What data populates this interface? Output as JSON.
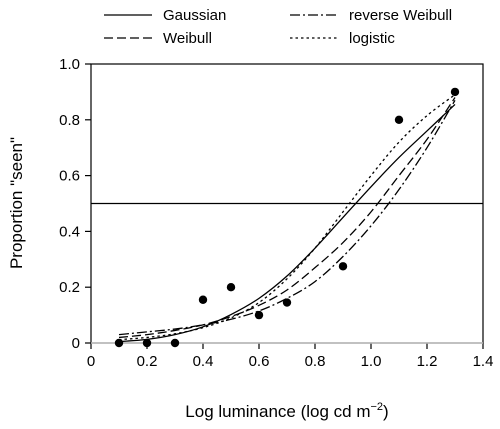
{
  "chart_data": {
    "type": "line",
    "xlabel": "Log luminance (log cd m",
    "xlabel_sup": "−2",
    "xlabel_close": ")",
    "ylabel": "Proportion \"seen\"",
    "xlim": [
      0,
      1.4
    ],
    "ylim": [
      0,
      1.0
    ],
    "xticks": [
      0,
      0.2,
      0.4,
      0.6,
      0.8,
      1.0,
      1.2,
      1.4
    ],
    "xtick_labels": [
      "0",
      "0.2",
      "0.4",
      "0.6",
      "0.8",
      "1.0",
      "1.2",
      "1.4"
    ],
    "yticks": [
      0,
      0.2,
      0.4,
      0.6,
      0.8,
      1.0
    ],
    "ytick_labels": [
      "0",
      "0.2",
      "0.4",
      "0.6",
      "0.8",
      "1.0"
    ],
    "reference_line_y": 0.5,
    "zero_line_color": "#bdbdbd",
    "legend_placement": "top, outside plot, two columns",
    "points": {
      "x": [
        0.1,
        0.2,
        0.3,
        0.4,
        0.5,
        0.6,
        0.7,
        0.9,
        1.1,
        1.3
      ],
      "y": [
        0.0,
        0.0,
        0.0,
        0.155,
        0.2,
        0.1,
        0.145,
        0.275,
        0.8,
        0.9
      ]
    },
    "series": [
      {
        "name": "Gaussian",
        "style": "solid",
        "x": [
          0.1,
          0.2,
          0.3,
          0.4,
          0.5,
          0.6,
          0.7,
          0.8,
          0.9,
          1.0,
          1.1,
          1.2,
          1.3
        ],
        "y": [
          0.005,
          0.013,
          0.03,
          0.058,
          0.102,
          0.16,
          0.24,
          0.34,
          0.45,
          0.56,
          0.665,
          0.76,
          0.855
        ]
      },
      {
        "name": "Weibull",
        "style": "dashed",
        "x": [
          0.1,
          0.2,
          0.3,
          0.4,
          0.5,
          0.6,
          0.7,
          0.8,
          0.9,
          1.0,
          1.1,
          1.2,
          1.3
        ],
        "y": [
          0.02,
          0.03,
          0.045,
          0.065,
          0.095,
          0.135,
          0.19,
          0.27,
          0.36,
          0.47,
          0.6,
          0.73,
          0.88
        ]
      },
      {
        "name": "reverse Weibull",
        "style": "dash-dot",
        "x": [
          0.1,
          0.2,
          0.3,
          0.4,
          0.5,
          0.6,
          0.7,
          0.8,
          0.9,
          1.0,
          1.1,
          1.2,
          1.3
        ],
        "y": [
          0.03,
          0.04,
          0.05,
          0.065,
          0.085,
          0.115,
          0.16,
          0.22,
          0.31,
          0.42,
          0.55,
          0.7,
          0.87
        ]
      },
      {
        "name": "logistic",
        "style": "dotted",
        "x": [
          0.1,
          0.2,
          0.3,
          0.4,
          0.5,
          0.6,
          0.7,
          0.8,
          0.9,
          1.0,
          1.1,
          1.2,
          1.3
        ],
        "y": [
          0.012,
          0.02,
          0.033,
          0.055,
          0.09,
          0.145,
          0.23,
          0.34,
          0.47,
          0.6,
          0.72,
          0.815,
          0.89
        ]
      }
    ]
  }
}
